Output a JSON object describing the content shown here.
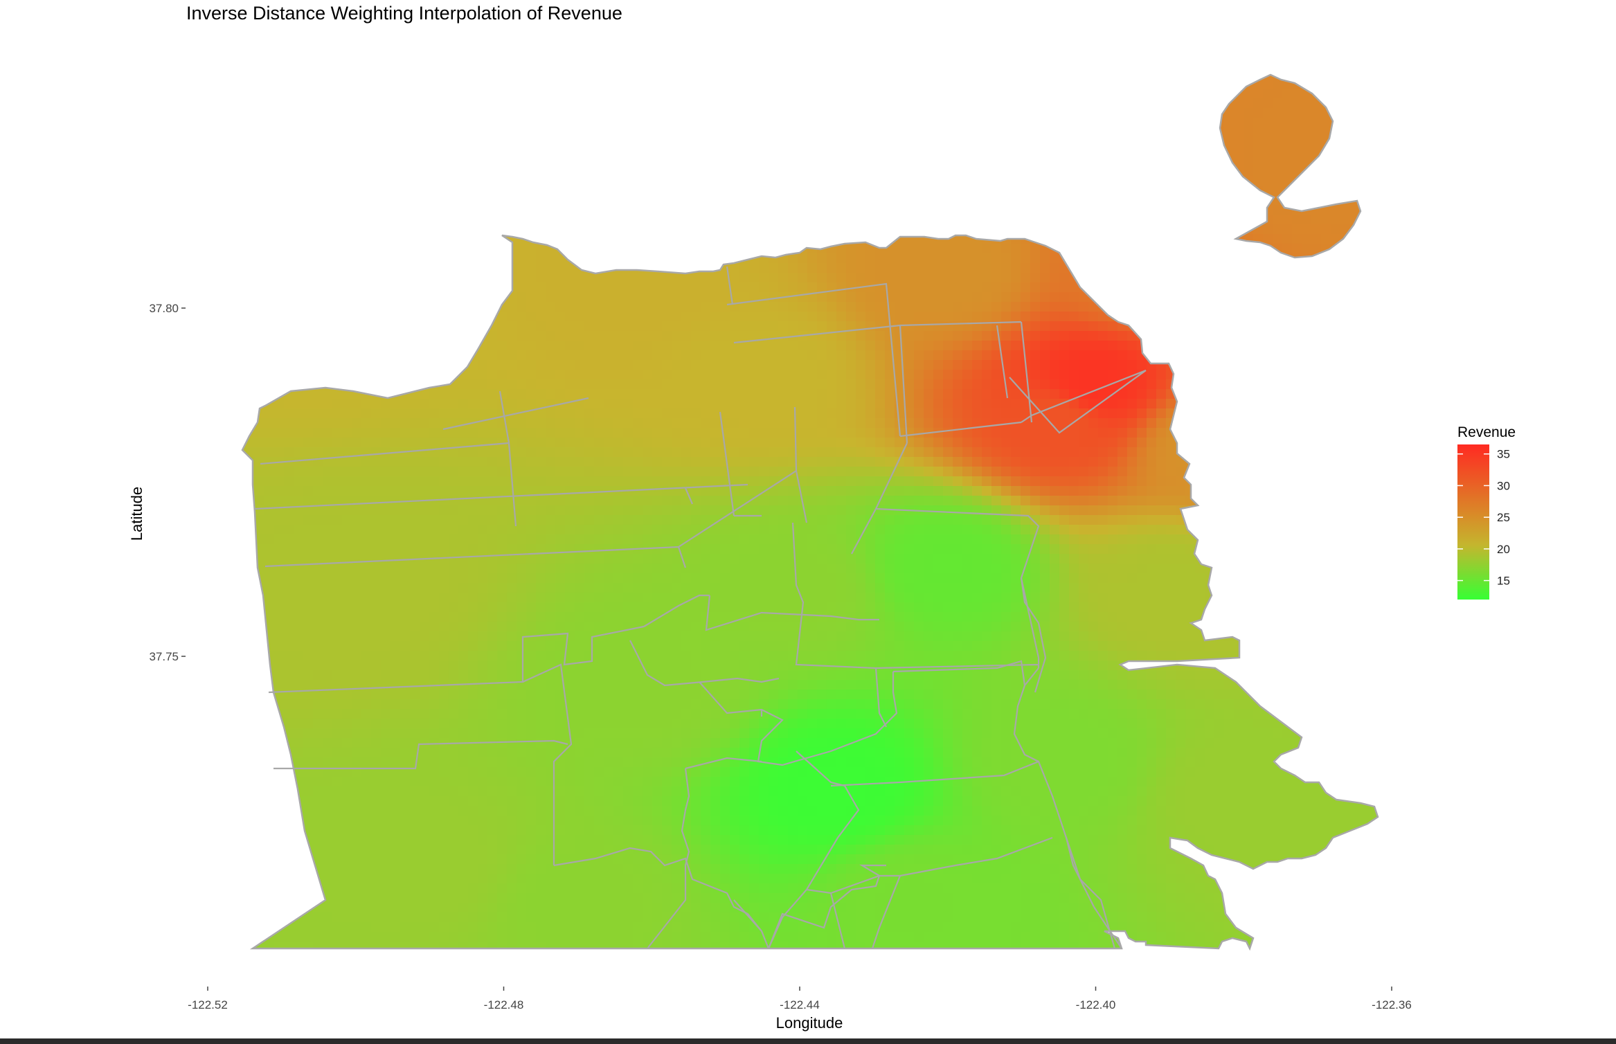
{
  "chart_data": {
    "type": "heatmap",
    "title": "Inverse Distance Weighting Interpolation of Revenue",
    "xlabel": "Longitude",
    "ylabel": "Latitude",
    "x_ticks": [
      -122.52,
      -122.48,
      -122.44,
      -122.4,
      -122.36
    ],
    "x_tick_labels": [
      "-122.52",
      "-122.48",
      "-122.44",
      "-122.40",
      "-122.36"
    ],
    "y_ticks": [
      37.8,
      37.75
    ],
    "y_tick_labels": [
      "37.80",
      "37.75"
    ],
    "xlim": [
      -122.52,
      -122.36
    ],
    "ylim": [
      37.7,
      37.84
    ],
    "grid": false,
    "legend": {
      "title": "Revenue",
      "position": "right",
      "ticks": [
        35,
        30,
        25,
        20,
        15
      ],
      "tick_labels": [
        "35",
        "30",
        "25",
        "20",
        "15"
      ],
      "range": [
        12,
        36.5
      ],
      "colors": {
        "low": "#36ff34",
        "mid": "#c8b52e",
        "high": "#ff2a22"
      }
    },
    "boundary_color": "#a8a8a8",
    "hotspots": [
      {
        "lon": -122.4005,
        "lat": 37.789,
        "value": 35.5,
        "kind": "peak"
      },
      {
        "lon": -122.405,
        "lat": 37.784,
        "value": 32.5,
        "kind": "peak"
      },
      {
        "lon": -122.435,
        "lat": 37.731,
        "value": 12.5,
        "kind": "trough"
      },
      {
        "lon": -122.42,
        "lat": 37.763,
        "value": 15.5,
        "kind": "trough"
      }
    ]
  }
}
